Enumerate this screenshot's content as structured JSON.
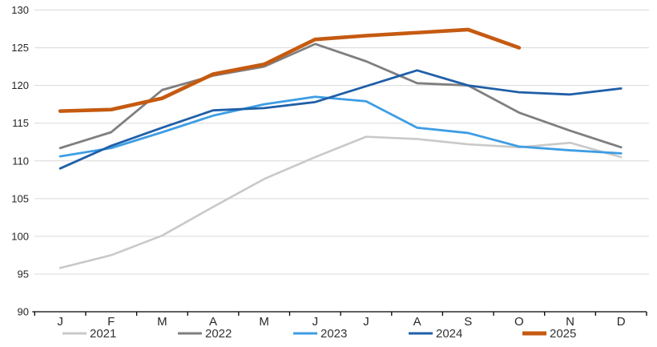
{
  "chart_data": {
    "type": "line",
    "title": "",
    "xlabel": "",
    "ylabel": "",
    "grid": "horizontal",
    "background_color": "#FFFFFF",
    "gridline_color": "#D9D9D9",
    "axis_color": "#000000",
    "tick_label_color": "#262626",
    "x_categories": [
      "J",
      "F",
      "M",
      "A",
      "M",
      "J",
      "J",
      "A",
      "S",
      "O",
      "N",
      "D"
    ],
    "y_axis": {
      "min": 90,
      "max": 130,
      "step": 5,
      "tick_labels": [
        "90",
        "95",
        "100",
        "105",
        "110",
        "115",
        "120",
        "125",
        "130"
      ]
    },
    "legend": {
      "position": "bottom",
      "entries": [
        "2021",
        "2022",
        "2023",
        "2024",
        "2025"
      ]
    },
    "series": [
      {
        "name": "2021",
        "color": "#C9C9C9",
        "line_width": 2.6,
        "values": [
          95.8,
          97.5,
          100.1,
          103.9,
          107.6,
          110.5,
          113.2,
          112.9,
          112.2,
          111.8,
          112.4,
          110.5
        ]
      },
      {
        "name": "2022",
        "color": "#7F7F7F",
        "line_width": 2.8,
        "values": [
          111.7,
          113.8,
          119.4,
          121.3,
          122.5,
          125.5,
          123.2,
          120.3,
          120.0,
          116.4,
          114.0,
          111.8
        ]
      },
      {
        "name": "2023",
        "color": "#3D9DE4",
        "line_width": 2.8,
        "values": [
          110.6,
          111.7,
          113.8,
          116.0,
          117.5,
          118.5,
          117.9,
          114.4,
          113.7,
          111.9,
          111.4,
          111.0
        ]
      },
      {
        "name": "2024",
        "color": "#1F5FA8",
        "line_width": 2.8,
        "values": [
          109.0,
          112.0,
          114.4,
          116.7,
          117.0,
          117.8,
          119.9,
          122.0,
          120.0,
          119.1,
          118.8,
          119.6
        ]
      },
      {
        "name": "2025",
        "color": "#C55A11",
        "line_width": 4.6,
        "values": [
          116.6,
          116.8,
          118.3,
          121.5,
          122.8,
          126.1,
          126.6,
          127.0,
          127.4,
          125.0,
          null,
          null
        ]
      }
    ]
  }
}
